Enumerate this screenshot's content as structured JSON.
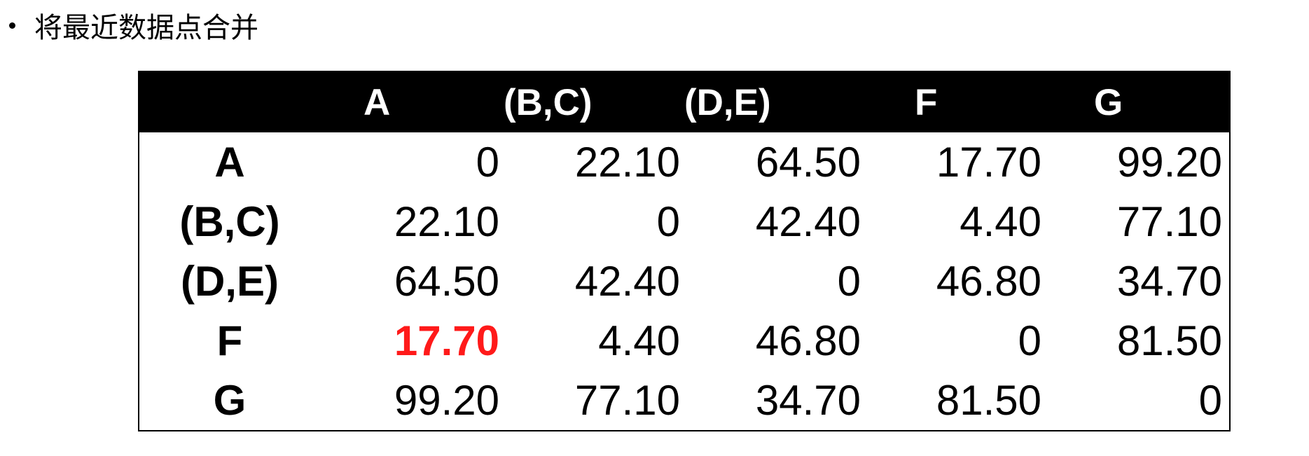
{
  "bullet": {
    "text": "将最近数据点合并"
  },
  "matrix": {
    "columns": [
      "A",
      "(B,C)",
      "(D,E)",
      "F",
      "G"
    ],
    "rows": [
      {
        "label": "A",
        "values": [
          "0",
          "22.10",
          "64.50",
          "17.70",
          "99.20"
        ]
      },
      {
        "label": "(B,C)",
        "values": [
          "22.10",
          "0",
          "42.40",
          "4.40",
          "77.10"
        ]
      },
      {
        "label": "(D,E)",
        "values": [
          "64.50",
          "42.40",
          "0",
          "46.80",
          "34.70"
        ]
      },
      {
        "label": "F",
        "values": [
          "17.70",
          "4.40",
          "46.80",
          "0",
          "81.50"
        ]
      },
      {
        "label": "G",
        "values": [
          "99.20",
          "77.10",
          "34.70",
          "81.50",
          "0"
        ]
      }
    ],
    "highlight": {
      "row": 3,
      "col": 0,
      "color": "#ff1a1a"
    }
  },
  "colors": {
    "header_bg": "#000000",
    "header_text": "#ffffff",
    "highlight": "#ff1a1a"
  }
}
